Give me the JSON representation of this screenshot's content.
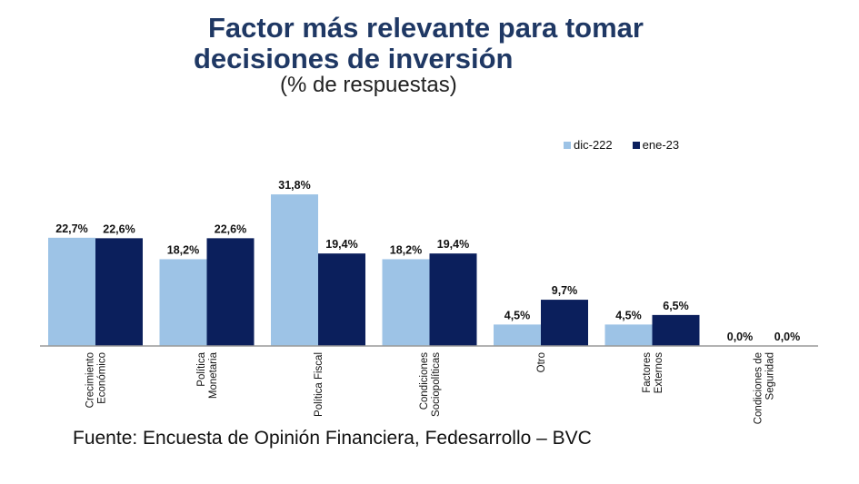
{
  "title_line1": "Factor más relevante para tomar",
  "title_line2": "decisiones de inversión",
  "subtitle": "(% de respuestas)",
  "source": "Fuente: Encuesta de Opinión Financiera, Fedesarrollo – BVC",
  "colors": {
    "series1": "#9dc3e6",
    "series2": "#0b1f5c",
    "title": "#1f3864"
  },
  "chart_data": {
    "type": "bar",
    "title": "Factor más relevante para tomar decisiones de inversión",
    "subtitle": "(% de respuestas)",
    "xlabel": "",
    "ylabel": "",
    "ylim": [
      0,
      35
    ],
    "grid": false,
    "legend_position": "top-right",
    "categories": [
      [
        "Crecimiento",
        "Económico"
      ],
      [
        "Política",
        "Monetaria"
      ],
      [
        "Política Fiscal"
      ],
      [
        "Condiciones",
        "Sociopolíticas"
      ],
      [
        "Otro"
      ],
      [
        "Factores",
        "Externos"
      ],
      [
        "Condiciones de",
        "Seguridad"
      ]
    ],
    "series": [
      {
        "name": "dic-222",
        "values": [
          22.7,
          18.2,
          31.8,
          18.2,
          4.5,
          4.5,
          0.0
        ],
        "labels": [
          "22,7%",
          "18,2%",
          "31,8%",
          "18,2%",
          "4,5%",
          "4,5%",
          "0,0%"
        ]
      },
      {
        "name": "ene-23",
        "values": [
          22.6,
          22.6,
          19.4,
          19.4,
          9.7,
          6.5,
          0.0
        ],
        "labels": [
          "22,6%",
          "22,6%",
          "19,4%",
          "19,4%",
          "9,7%",
          "6,5%",
          "0,0%"
        ]
      }
    ]
  }
}
